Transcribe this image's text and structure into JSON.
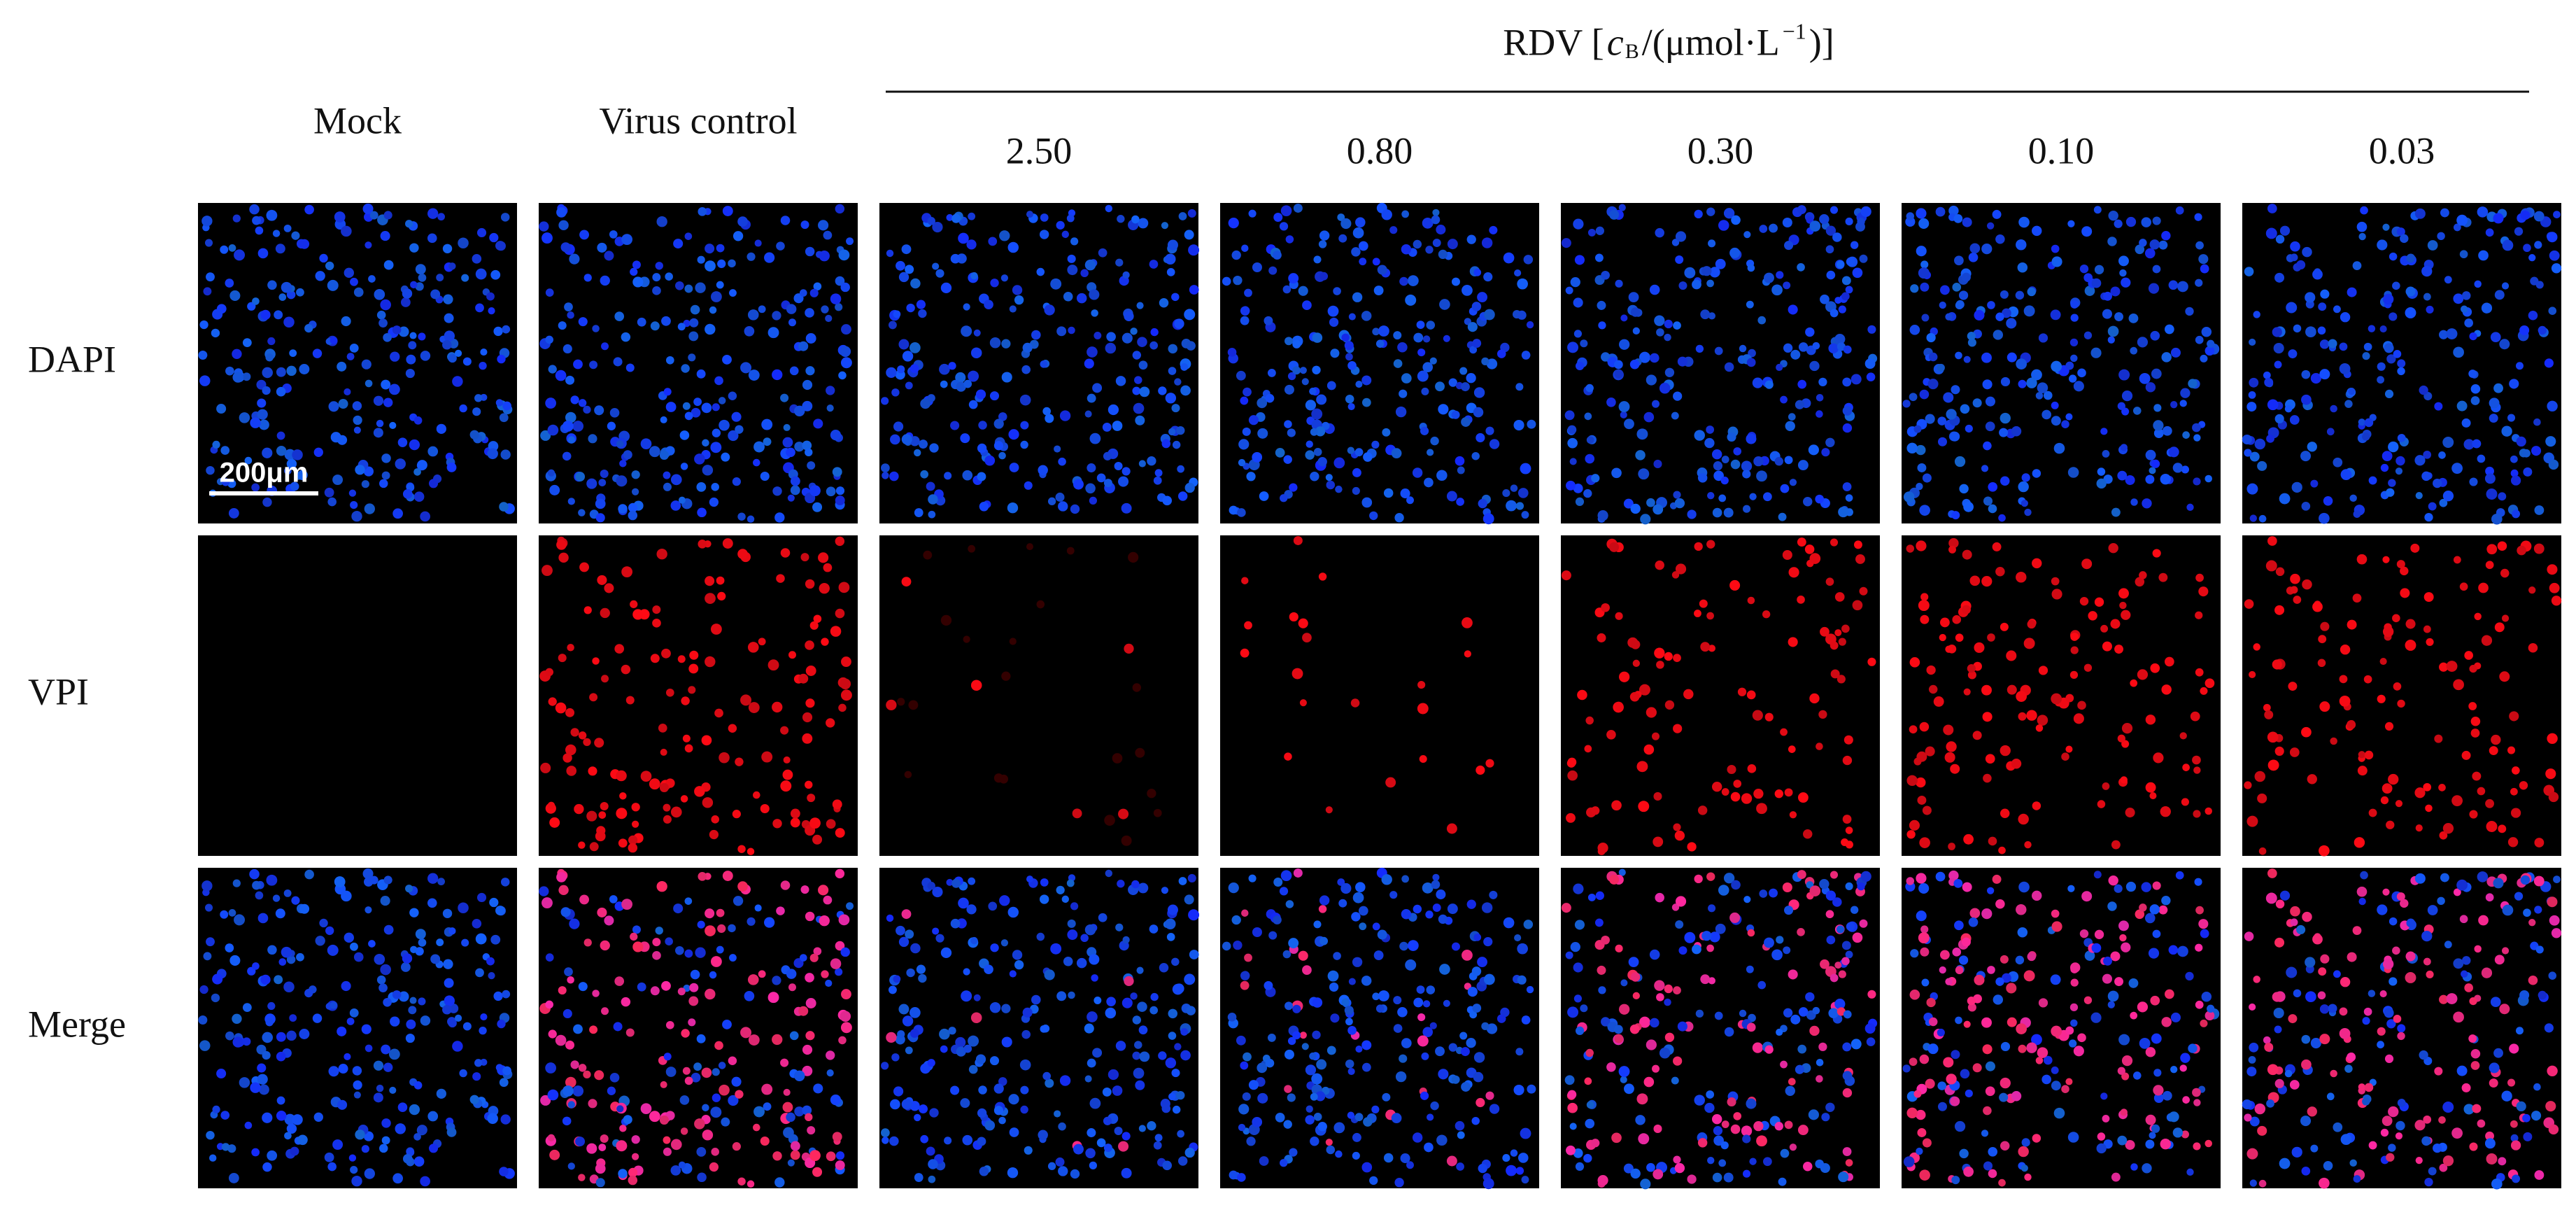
{
  "header": {
    "prefix": "RDV [",
    "variable": "c",
    "subscript": "B",
    "middle": "/(μmol·L",
    "superscript": "−1",
    "suffix": ")]"
  },
  "columns": [
    "Mock",
    "Virus control",
    "2.50",
    "0.80",
    "0.30",
    "0.10",
    "0.03"
  ],
  "rows": [
    "DAPI",
    "VPI",
    "Merge"
  ],
  "scale_bar": "200μm"
}
